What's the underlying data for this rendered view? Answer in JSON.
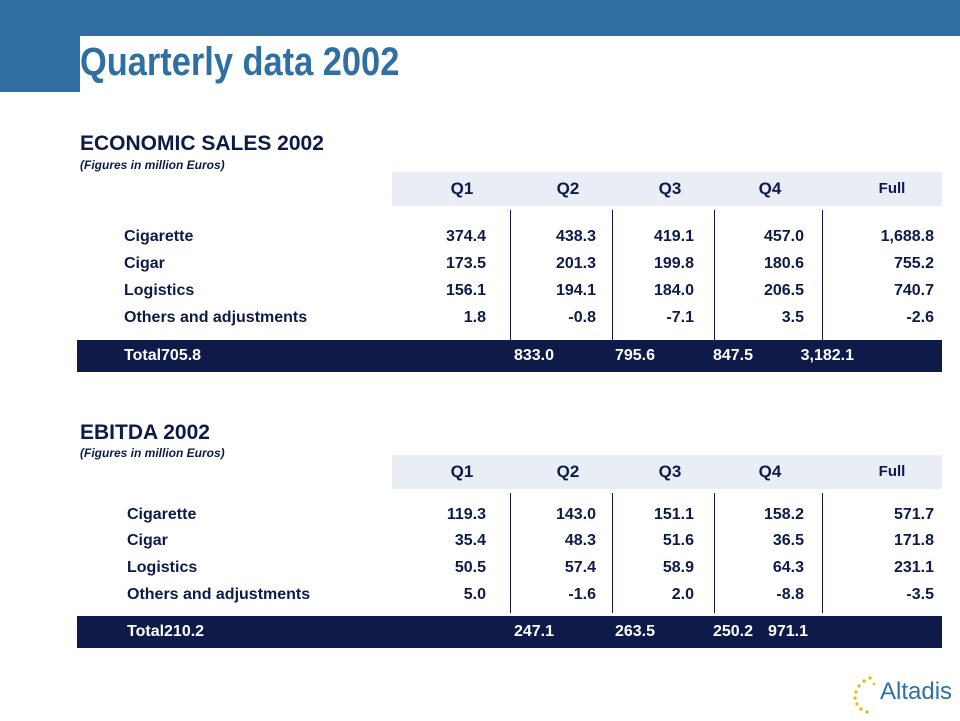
{
  "title": "Quarterly data 2002",
  "columns": [
    "Q1",
    "Q2",
    "Q3",
    "Q4",
    "Full"
  ],
  "sales": {
    "heading": "ECONOMIC SALES 2002",
    "subheading": "(Figures in million  Euros)",
    "rows": [
      {
        "label": "Cigarette",
        "values": [
          "374.4",
          "438.3",
          "419.1",
          "457.0",
          "1,688.8"
        ]
      },
      {
        "label": "Cigar",
        "values": [
          "173.5",
          "201.3",
          "199.8",
          "180.6",
          "755.2"
        ]
      },
      {
        "label": "Logistics",
        "values": [
          "156.1",
          "194.1",
          "184.0",
          "206.5",
          "740.7"
        ]
      },
      {
        "label": "Others and adjustments",
        "values": [
          "1.8",
          "-0.8",
          "-7.1",
          "3.5",
          "-2.6"
        ]
      }
    ],
    "total": {
      "label": "Total705.8",
      "values": [
        "833.0",
        "795.6",
        "847.5",
        "3,182.1"
      ]
    }
  },
  "ebitda": {
    "heading": "EBITDA 2002",
    "subheading": "(Figures in million  Euros)",
    "rows": [
      {
        "label": "Cigarette",
        "values": [
          "119.3",
          "143.0",
          "151.1",
          "158.2",
          "571.7"
        ]
      },
      {
        "label": "Cigar",
        "values": [
          "35.4",
          "48.3",
          "51.6",
          "36.5",
          "171.8"
        ]
      },
      {
        "label": "Logistics",
        "values": [
          "50.5",
          "57.4",
          "58.9",
          "64.3",
          "231.1"
        ]
      },
      {
        "label": "Others and adjustments",
        "values": [
          "5.0",
          "-1.6",
          "2.0",
          "-8.8",
          "-3.5"
        ]
      }
    ],
    "total": {
      "label": "Total210.2",
      "values": [
        "247.1",
        "263.5",
        "250.2",
        "971.1"
      ]
    }
  },
  "logo": {
    "text": "Altadis",
    "colors": {
      "brand": "#2f6fa3",
      "stars": "#e6b800"
    }
  }
}
